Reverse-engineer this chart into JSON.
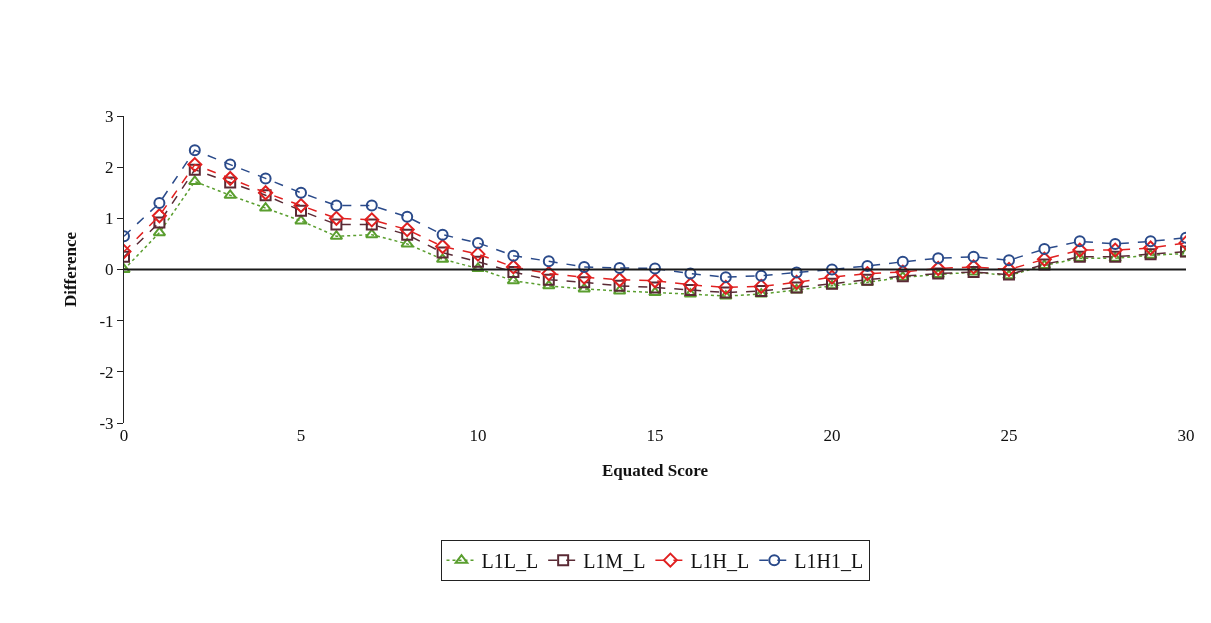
{
  "chart_data": {
    "type": "line",
    "xlabel": "Equated Score",
    "ylabel": "Difference",
    "x": [
      0,
      1,
      2,
      3,
      4,
      5,
      6,
      7,
      8,
      9,
      10,
      11,
      12,
      13,
      14,
      15,
      16,
      17,
      18,
      19,
      20,
      21,
      22,
      23,
      24,
      25,
      26,
      27,
      28,
      29,
      30
    ],
    "xlim": [
      0,
      30
    ],
    "xticks": [
      0,
      5,
      10,
      15,
      20,
      25,
      30
    ],
    "ylim": [
      -3,
      3
    ],
    "yticks": [
      -3,
      -2,
      -1,
      0,
      1,
      2,
      3
    ],
    "grid": false,
    "legend": "bottom",
    "ref_lines": [
      {
        "axis": "y",
        "value": 0,
        "color": "#1a1a1a",
        "line_style": "solid"
      }
    ],
    "series": [
      {
        "name": "L1L_L",
        "color": "#5a9e2f",
        "marker": "triangle",
        "line_style": "dotted",
        "values": [
          0.0,
          0.72,
          1.72,
          1.45,
          1.2,
          0.95,
          0.65,
          0.68,
          0.5,
          0.2,
          0.02,
          -0.22,
          -0.32,
          -0.38,
          -0.42,
          -0.45,
          -0.48,
          -0.52,
          -0.48,
          -0.4,
          -0.32,
          -0.25,
          -0.15,
          -0.1,
          -0.05,
          -0.12,
          0.08,
          0.22,
          0.22,
          0.28,
          0.31
        ]
      },
      {
        "name": "L1M_L",
        "color": "#5a2a35",
        "marker": "square",
        "line_style": "dashed",
        "values": [
          0.25,
          0.92,
          1.95,
          1.7,
          1.45,
          1.15,
          0.88,
          0.88,
          0.68,
          0.33,
          0.15,
          -0.05,
          -0.2,
          -0.25,
          -0.32,
          -0.35,
          -0.4,
          -0.45,
          -0.42,
          -0.35,
          -0.28,
          -0.2,
          -0.13,
          -0.08,
          -0.05,
          -0.1,
          0.1,
          0.25,
          0.25,
          0.3,
          0.35
        ]
      },
      {
        "name": "L1H_L",
        "color": "#e02020",
        "marker": "diamond",
        "line_style": "dashed",
        "values": [
          0.35,
          1.05,
          2.05,
          1.78,
          1.5,
          1.25,
          1.0,
          0.97,
          0.78,
          0.45,
          0.3,
          0.05,
          -0.08,
          -0.15,
          -0.2,
          -0.22,
          -0.3,
          -0.35,
          -0.33,
          -0.25,
          -0.15,
          -0.08,
          -0.05,
          0.02,
          0.05,
          0.0,
          0.2,
          0.38,
          0.38,
          0.42,
          0.52
        ]
      },
      {
        "name": "L1H1_L",
        "color": "#2a4a8a",
        "marker": "circle",
        "line_style": "dashed",
        "values": [
          0.65,
          1.3,
          2.33,
          2.05,
          1.78,
          1.5,
          1.25,
          1.25,
          1.03,
          0.68,
          0.52,
          0.27,
          0.16,
          0.05,
          0.03,
          0.02,
          -0.08,
          -0.15,
          -0.12,
          -0.06,
          0.0,
          0.07,
          0.15,
          0.22,
          0.25,
          0.18,
          0.4,
          0.55,
          0.5,
          0.55,
          0.62
        ]
      }
    ]
  }
}
